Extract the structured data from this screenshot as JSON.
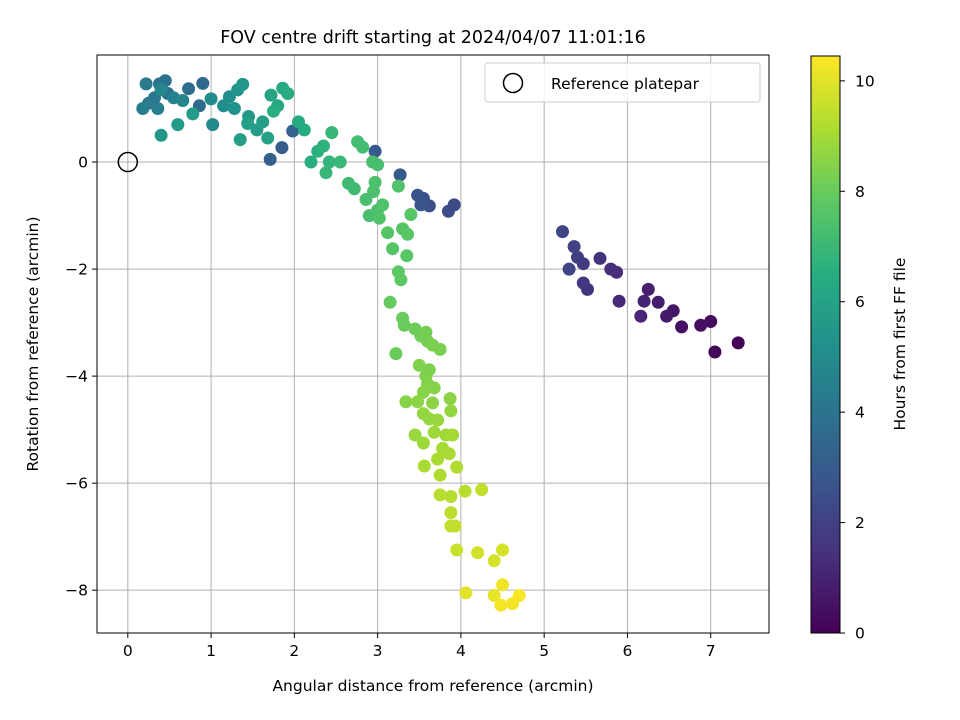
{
  "chart_data": {
    "type": "scatter",
    "title": "FOV centre drift starting at 2024/04/07 11:01:16",
    "xlabel": "Angular distance from reference (arcmin)",
    "ylabel": "Rotation from reference (arcmin)",
    "xlim": [
      -0.37,
      7.7
    ],
    "ylim": [
      -8.8,
      2.0
    ],
    "xticks": [
      0,
      1,
      2,
      3,
      4,
      5,
      6,
      7
    ],
    "yticks": [
      -8,
      -6,
      -4,
      -2,
      0
    ],
    "grid": true,
    "legend": {
      "position": "top-right",
      "label": "Reference platepar"
    },
    "reference_point": {
      "x": 0,
      "y": 0
    },
    "colorbar": {
      "label": "Hours from first FF file",
      "cmap": "viridis",
      "range": [
        0,
        10.45
      ],
      "ticks": [
        0,
        2,
        4,
        6,
        8,
        10
      ]
    },
    "series": [
      {
        "points": [
          [
            7.33,
            -3.38,
            0.1
          ],
          [
            7.05,
            -3.55,
            0.2
          ],
          [
            7.0,
            -2.98,
            0.3
          ],
          [
            6.88,
            -3.05,
            0.4
          ],
          [
            6.65,
            -3.08,
            0.5
          ],
          [
            6.55,
            -2.78,
            0.6
          ],
          [
            6.47,
            -2.88,
            0.7
          ],
          [
            6.37,
            -2.62,
            0.8
          ],
          [
            6.25,
            -2.38,
            0.9
          ],
          [
            6.2,
            -2.6,
            1.0
          ],
          [
            6.16,
            -2.88,
            1.1
          ],
          [
            5.9,
            -2.6,
            1.2
          ],
          [
            5.87,
            -2.06,
            1.3
          ],
          [
            5.8,
            -2.0,
            1.4
          ],
          [
            5.67,
            -1.8,
            1.5
          ],
          [
            5.52,
            -2.38,
            1.6
          ],
          [
            5.47,
            -2.26,
            1.7
          ],
          [
            5.47,
            -1.9,
            1.8
          ],
          [
            5.4,
            -1.78,
            1.9
          ],
          [
            5.36,
            -1.58,
            2.0
          ],
          [
            5.3,
            -2.0,
            2.1
          ],
          [
            5.22,
            -1.3,
            2.2
          ],
          [
            3.92,
            -0.8,
            2.3
          ],
          [
            3.85,
            -0.92,
            2.4
          ],
          [
            3.62,
            -0.82,
            2.5
          ],
          [
            3.55,
            -0.68,
            2.6
          ],
          [
            3.48,
            -0.62,
            2.7
          ],
          [
            3.52,
            -0.8,
            2.8
          ],
          [
            3.27,
            -0.24,
            2.9
          ],
          [
            2.97,
            0.2,
            3.0
          ],
          [
            1.85,
            0.27,
            3.1
          ],
          [
            1.71,
            0.05,
            3.2
          ],
          [
            1.98,
            0.58,
            3.3
          ],
          [
            0.9,
            1.47,
            3.5
          ],
          [
            0.86,
            1.05,
            3.6
          ],
          [
            0.73,
            1.37,
            3.7
          ],
          [
            0.48,
            1.28,
            3.8
          ],
          [
            0.45,
            1.52,
            3.9
          ],
          [
            0.38,
            1.46,
            4.0
          ],
          [
            0.32,
            1.2,
            4.1
          ],
          [
            0.25,
            1.1,
            4.2
          ],
          [
            0.22,
            1.46,
            4.3
          ],
          [
            0.18,
            1.0,
            4.4
          ],
          [
            0.36,
            1.0,
            4.5
          ],
          [
            0.55,
            1.2,
            4.6
          ],
          [
            0.66,
            1.15,
            4.7
          ],
          [
            0.4,
            1.35,
            4.8
          ],
          [
            1.02,
            0.7,
            4.9
          ],
          [
            1.0,
            1.18,
            5.0
          ],
          [
            1.15,
            1.05,
            5.1
          ],
          [
            1.22,
            1.22,
            5.2
          ],
          [
            1.28,
            1.0,
            5.3
          ],
          [
            1.32,
            1.35,
            5.4
          ],
          [
            1.38,
            1.45,
            5.5
          ],
          [
            1.45,
            0.85,
            5.6
          ],
          [
            1.55,
            0.6,
            5.7
          ],
          [
            1.62,
            0.75,
            5.8
          ],
          [
            0.4,
            0.5,
            5.5
          ],
          [
            0.6,
            0.7,
            5.6
          ],
          [
            0.78,
            0.9,
            5.7
          ],
          [
            1.35,
            0.42,
            5.8
          ],
          [
            1.44,
            0.72,
            5.9
          ],
          [
            1.68,
            0.45,
            6.0
          ],
          [
            1.72,
            1.25,
            6.1
          ],
          [
            1.8,
            1.05,
            6.2
          ],
          [
            1.86,
            1.38,
            6.3
          ],
          [
            1.92,
            1.28,
            6.4
          ],
          [
            1.75,
            0.95,
            6.5
          ],
          [
            2.05,
            0.75,
            6.3
          ],
          [
            2.12,
            0.6,
            6.4
          ],
          [
            2.2,
            0.0,
            6.5
          ],
          [
            2.28,
            0.2,
            6.6
          ],
          [
            2.35,
            0.3,
            6.7
          ],
          [
            2.42,
            0.0,
            6.8
          ],
          [
            2.45,
            0.55,
            6.9
          ],
          [
            2.38,
            -0.2,
            6.9
          ],
          [
            2.55,
            0.0,
            7.0
          ],
          [
            2.65,
            -0.4,
            7.1
          ],
          [
            2.72,
            -0.5,
            7.1
          ],
          [
            2.76,
            0.38,
            7.2
          ],
          [
            2.82,
            0.28,
            7.2
          ],
          [
            2.86,
            -0.7,
            7.3
          ],
          [
            2.9,
            -1.0,
            7.3
          ],
          [
            2.95,
            -0.55,
            7.4
          ],
          [
            3.0,
            -0.9,
            7.4
          ],
          [
            3.02,
            -1.05,
            7.5
          ],
          [
            3.06,
            -0.8,
            7.5
          ],
          [
            3.0,
            -0.05,
            7.3
          ],
          [
            2.94,
            0.0,
            7.3
          ],
          [
            2.97,
            -0.38,
            7.4
          ],
          [
            3.12,
            -1.32,
            7.6
          ],
          [
            3.18,
            -1.62,
            7.6
          ],
          [
            3.25,
            -0.45,
            7.5
          ],
          [
            3.3,
            -1.25,
            7.6
          ],
          [
            3.36,
            -1.35,
            7.7
          ],
          [
            3.4,
            -0.98,
            7.7
          ],
          [
            3.35,
            -1.75,
            7.7
          ],
          [
            3.25,
            -2.05,
            7.8
          ],
          [
            3.28,
            -2.2,
            7.8
          ],
          [
            3.15,
            -2.62,
            7.9
          ],
          [
            3.3,
            -2.92,
            8.0
          ],
          [
            3.32,
            -3.05,
            8.0
          ],
          [
            3.22,
            -3.58,
            8.0
          ],
          [
            3.45,
            -3.12,
            8.1
          ],
          [
            3.52,
            -3.25,
            8.1
          ],
          [
            3.58,
            -3.18,
            8.2
          ],
          [
            3.6,
            -3.35,
            8.2
          ],
          [
            3.66,
            -3.42,
            8.3
          ],
          [
            3.75,
            -3.5,
            8.3
          ],
          [
            3.62,
            -3.88,
            8.3
          ],
          [
            3.5,
            -3.8,
            8.4
          ],
          [
            3.58,
            -4.0,
            8.4
          ],
          [
            3.6,
            -4.15,
            8.4
          ],
          [
            3.68,
            -4.22,
            8.5
          ],
          [
            3.55,
            -4.3,
            8.5
          ],
          [
            3.48,
            -4.48,
            8.6
          ],
          [
            3.66,
            -4.5,
            8.6
          ],
          [
            3.34,
            -4.48,
            8.5
          ],
          [
            3.87,
            -4.42,
            8.6
          ],
          [
            3.55,
            -4.7,
            8.7
          ],
          [
            3.62,
            -4.8,
            8.7
          ],
          [
            3.88,
            -4.65,
            8.7
          ],
          [
            3.72,
            -4.82,
            8.8
          ],
          [
            3.45,
            -5.1,
            8.8
          ],
          [
            3.55,
            -5.25,
            8.9
          ],
          [
            3.68,
            -5.05,
            8.9
          ],
          [
            3.82,
            -5.1,
            8.9
          ],
          [
            3.9,
            -5.1,
            9.0
          ],
          [
            3.78,
            -5.35,
            9.0
          ],
          [
            3.86,
            -5.45,
            9.1
          ],
          [
            3.72,
            -5.55,
            9.1
          ],
          [
            3.56,
            -5.68,
            9.1
          ],
          [
            3.95,
            -5.7,
            9.2
          ],
          [
            3.75,
            -5.85,
            9.2
          ],
          [
            3.75,
            -6.22,
            9.3
          ],
          [
            3.88,
            -6.25,
            9.3
          ],
          [
            4.05,
            -6.15,
            9.3
          ],
          [
            3.88,
            -6.55,
            9.4
          ],
          [
            3.88,
            -6.8,
            9.4
          ],
          [
            3.93,
            -6.8,
            9.5
          ],
          [
            3.95,
            -7.25,
            9.6
          ],
          [
            4.25,
            -6.12,
            9.5
          ],
          [
            4.2,
            -7.3,
            9.7
          ],
          [
            4.4,
            -7.45,
            9.8
          ],
          [
            4.5,
            -7.25,
            9.8
          ],
          [
            4.06,
            -8.05,
            10.0
          ],
          [
            4.4,
            -8.1,
            10.1
          ],
          [
            4.5,
            -7.9,
            10.2
          ],
          [
            4.48,
            -8.28,
            10.3
          ],
          [
            4.62,
            -8.25,
            10.3
          ],
          [
            4.7,
            -8.1,
            10.4
          ]
        ]
      }
    ]
  }
}
